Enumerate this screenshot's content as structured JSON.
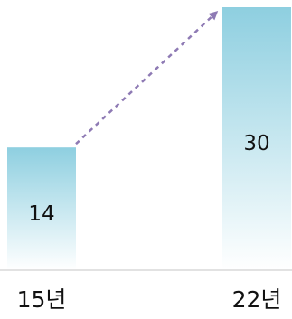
{
  "chart_data": {
    "type": "bar",
    "categories": [
      "15년",
      "22년"
    ],
    "values": [
      14,
      30
    ],
    "value_labels": [
      "14",
      "30"
    ],
    "title": "",
    "xlabel": "",
    "ylabel": "",
    "ylim": [
      0,
      30
    ],
    "grid": false,
    "legend": "none",
    "annotations": [
      {
        "type": "dashed-arrow",
        "from": "15년",
        "to": "22년"
      }
    ],
    "colors": {
      "bar_top": "#8ecfe0",
      "bar_bottom": "#ffffff",
      "arrow": "#8e7ab4",
      "baseline": "#d9d9d9",
      "text": "#111111"
    }
  }
}
